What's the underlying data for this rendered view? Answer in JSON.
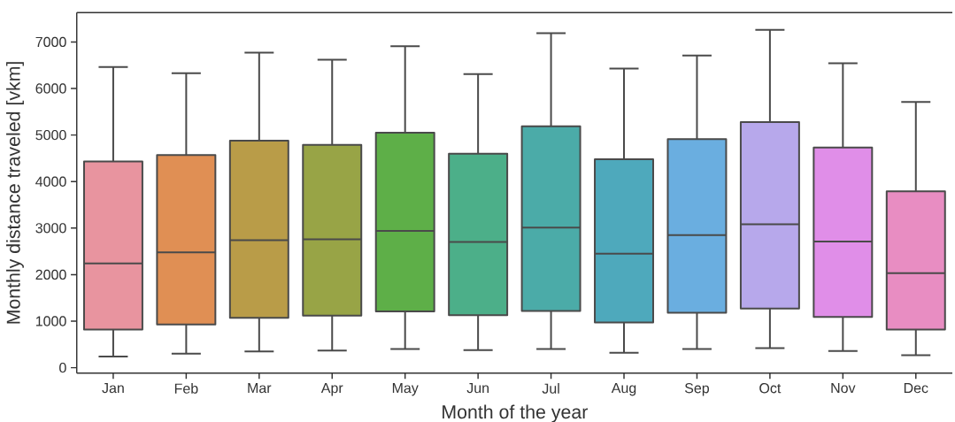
{
  "chart_data": {
    "type": "box",
    "xlabel": "Month of the year",
    "ylabel": "Monthly distance traveled [vkm]",
    "categories": [
      "Jan",
      "Feb",
      "Mar",
      "Apr",
      "May",
      "Jun",
      "Jul",
      "Aug",
      "Sep",
      "Oct",
      "Nov",
      "Dec"
    ],
    "boxes": [
      {
        "low": 240,
        "q1": 820,
        "median": 2240,
        "q3": 4430,
        "high": 6460
      },
      {
        "low": 300,
        "q1": 930,
        "median": 2480,
        "q3": 4570,
        "high": 6330
      },
      {
        "low": 350,
        "q1": 1070,
        "median": 2740,
        "q3": 4880,
        "high": 6770
      },
      {
        "low": 370,
        "q1": 1120,
        "median": 2760,
        "q3": 4790,
        "high": 6620
      },
      {
        "low": 400,
        "q1": 1210,
        "median": 2940,
        "q3": 5050,
        "high": 6910
      },
      {
        "low": 380,
        "q1": 1130,
        "median": 2700,
        "q3": 4600,
        "high": 6310
      },
      {
        "low": 400,
        "q1": 1220,
        "median": 3010,
        "q3": 5190,
        "high": 7190
      },
      {
        "low": 320,
        "q1": 970,
        "median": 2450,
        "q3": 4480,
        "high": 6430
      },
      {
        "low": 400,
        "q1": 1180,
        "median": 2850,
        "q3": 4910,
        "high": 6710
      },
      {
        "low": 420,
        "q1": 1270,
        "median": 3080,
        "q3": 5280,
        "high": 7260
      },
      {
        "low": 360,
        "q1": 1090,
        "median": 2710,
        "q3": 4730,
        "high": 6540
      },
      {
        "low": 270,
        "q1": 820,
        "median": 2030,
        "q3": 3790,
        "high": 5710
      }
    ],
    "colors": [
      "#e8949f",
      "#e08f54",
      "#b99c48",
      "#98a446",
      "#5eaf48",
      "#4caf89",
      "#4baba8",
      "#4ea9bc",
      "#6aaee0",
      "#b7a8eb",
      "#e08ee8",
      "#e88dc2"
    ],
    "ylim": [
      -115,
      7630
    ],
    "yticks": [
      0,
      1000,
      2000,
      3000,
      4000,
      5000,
      6000,
      7000
    ]
  }
}
